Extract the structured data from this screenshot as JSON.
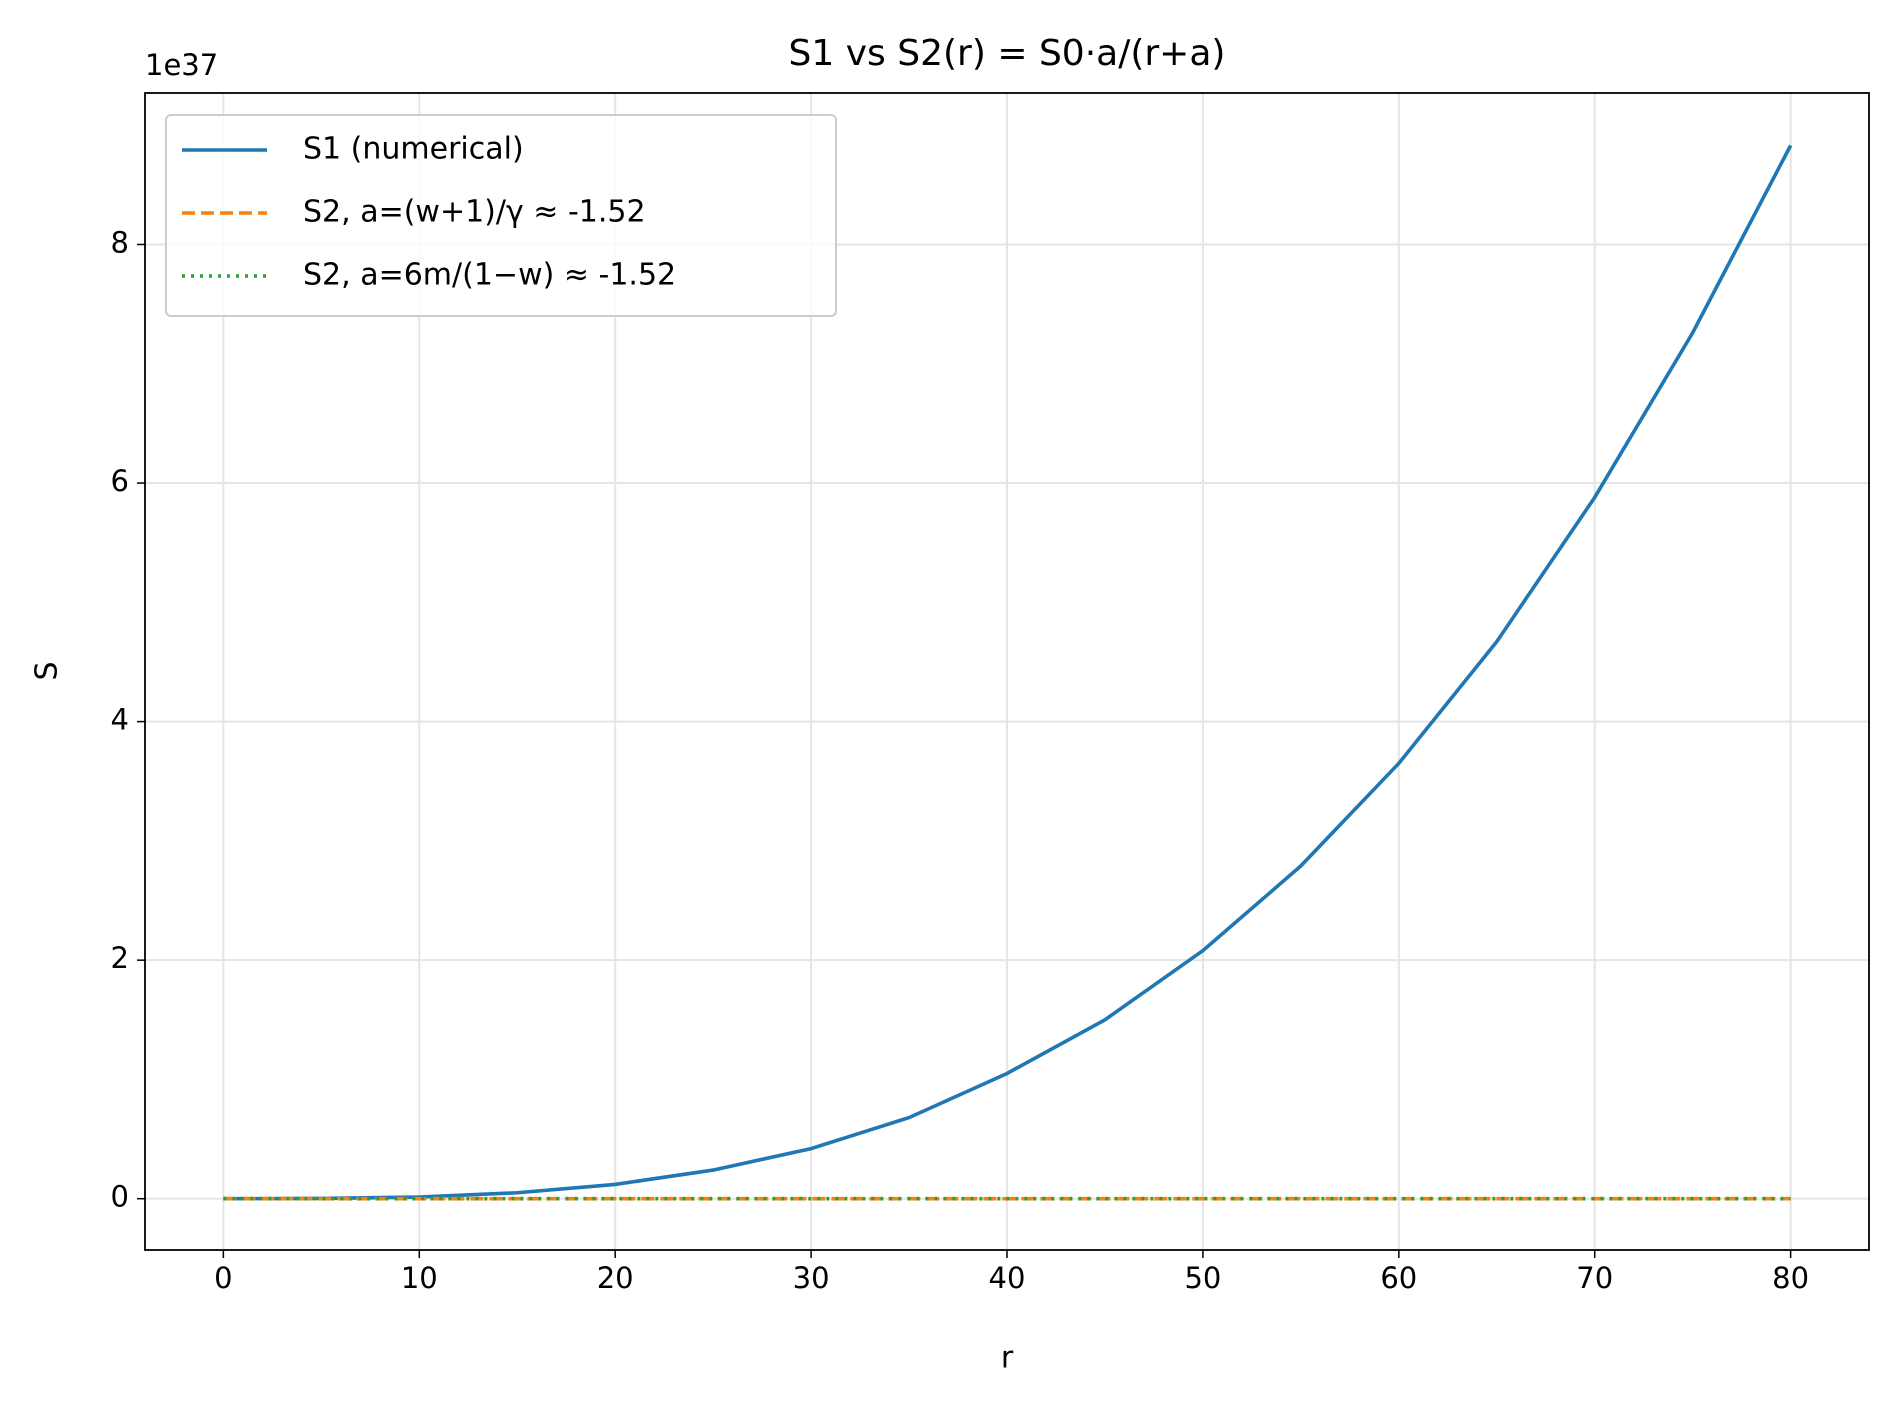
{
  "chart_data": {
    "type": "line",
    "title": "S1 vs S2(r) = S0·a/(r+a)",
    "x_label": "r",
    "y_label": "S",
    "y_offset_text": "1e37",
    "xlim": [
      -4,
      84
    ],
    "ylim": [
      -0.43,
      9.27
    ],
    "xticks": [
      0,
      10,
      20,
      30,
      40,
      50,
      60,
      70,
      80
    ],
    "yticks": [
      0,
      2,
      4,
      6,
      8
    ],
    "grid": true,
    "legend": "upper left",
    "series": [
      {
        "name": "S1 (numerical)",
        "color": "#1f77b4",
        "style": "solid",
        "x": [
          0,
          5,
          10,
          15,
          20,
          25,
          30,
          35,
          40,
          45,
          50,
          55,
          60,
          65,
          70,
          75,
          80
        ],
        "values": [
          0,
          0.002,
          0.014,
          0.05,
          0.12,
          0.24,
          0.42,
          0.68,
          1.05,
          1.5,
          2.08,
          2.79,
          3.65,
          4.67,
          5.88,
          7.26,
          8.83
        ]
      },
      {
        "name": "S2, a=(w+1)/γ ≈ -1.52",
        "color": "#ff7f0e",
        "style": "dashed",
        "x": [
          0,
          80
        ],
        "values": [
          0,
          0
        ]
      },
      {
        "name": "S2, a=6m/(1−w) ≈ -1.52",
        "color": "#2ca02c",
        "style": "dotted",
        "x": [
          0,
          80
        ],
        "values": [
          0,
          0
        ]
      }
    ]
  }
}
